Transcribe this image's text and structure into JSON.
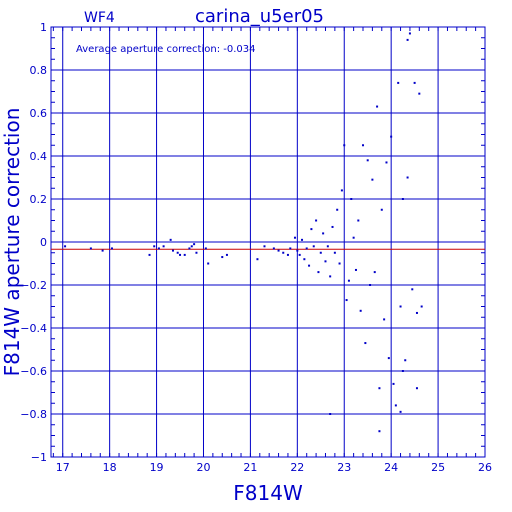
{
  "colors": {
    "axis": "#0000c8",
    "points": "#0000c8",
    "reference_line": "#c80000",
    "background": "#ffffff"
  },
  "chart_data": {
    "type": "scatter",
    "chip_label": "WF4",
    "title": "carina_u5er05",
    "annotation": "Average aperture correction: -0.034",
    "xlabel": "F814W",
    "ylabel": "F814W aperture correction",
    "xlim": [
      16.75,
      26
    ],
    "ylim": [
      -1,
      1
    ],
    "xticks": [
      17,
      18,
      19,
      20,
      21,
      22,
      23,
      24,
      25,
      26
    ],
    "yticks": [
      -1,
      -0.8,
      -0.6,
      -0.4,
      -0.2,
      0,
      0.2,
      0.4,
      0.6,
      0.8,
      1
    ],
    "ytick_labels": [
      "−1",
      "−0.8",
      "−0.6",
      "−0.4",
      "−0.2",
      "0",
      "0.2",
      "0.4",
      "0.6",
      "0.8",
      "1"
    ],
    "grid": true,
    "reference_line_y": -0.034,
    "zero_line_y": 0,
    "points": [
      [
        17.05,
        -0.02
      ],
      [
        17.6,
        -0.03
      ],
      [
        17.85,
        -0.04
      ],
      [
        18.05,
        -0.03
      ],
      [
        18.85,
        -0.06
      ],
      [
        18.95,
        -0.02
      ],
      [
        19.05,
        -0.03
      ],
      [
        19.15,
        -0.02
      ],
      [
        19.3,
        0.01
      ],
      [
        19.35,
        -0.04
      ],
      [
        19.45,
        -0.05
      ],
      [
        19.5,
        -0.06
      ],
      [
        19.6,
        -0.06
      ],
      [
        19.7,
        -0.03
      ],
      [
        19.75,
        -0.02
      ],
      [
        19.8,
        -0.01
      ],
      [
        19.85,
        -0.05
      ],
      [
        20.05,
        -0.03
      ],
      [
        20.1,
        -0.1
      ],
      [
        20.4,
        -0.07
      ],
      [
        20.5,
        -0.06
      ],
      [
        21.15,
        -0.08
      ],
      [
        21.3,
        -0.02
      ],
      [
        21.5,
        -0.03
      ],
      [
        21.6,
        -0.04
      ],
      [
        21.7,
        -0.05
      ],
      [
        21.8,
        -0.06
      ],
      [
        21.85,
        -0.03
      ],
      [
        21.95,
        0.02
      ],
      [
        22.0,
        -0.04
      ],
      [
        22.05,
        -0.06
      ],
      [
        22.1,
        0.01
      ],
      [
        22.15,
        -0.08
      ],
      [
        22.2,
        -0.03
      ],
      [
        22.25,
        -0.11
      ],
      [
        22.3,
        0.06
      ],
      [
        22.35,
        -0.02
      ],
      [
        22.4,
        0.1
      ],
      [
        22.45,
        -0.14
      ],
      [
        22.5,
        -0.05
      ],
      [
        22.55,
        0.04
      ],
      [
        22.6,
        -0.09
      ],
      [
        22.65,
        -0.02
      ],
      [
        22.7,
        -0.16
      ],
      [
        22.75,
        0.07
      ],
      [
        22.8,
        -0.05
      ],
      [
        22.85,
        0.15
      ],
      [
        22.9,
        -0.1
      ],
      [
        22.95,
        0.24
      ],
      [
        23.0,
        0.45
      ],
      [
        23.05,
        -0.27
      ],
      [
        23.1,
        -0.18
      ],
      [
        23.15,
        0.2
      ],
      [
        23.2,
        0.02
      ],
      [
        23.25,
        -0.13
      ],
      [
        23.3,
        0.1
      ],
      [
        23.35,
        -0.32
      ],
      [
        23.4,
        0.45
      ],
      [
        23.45,
        -0.47
      ],
      [
        23.5,
        0.38
      ],
      [
        23.55,
        -0.2
      ],
      [
        23.6,
        0.29
      ],
      [
        23.65,
        -0.14
      ],
      [
        23.7,
        0.63
      ],
      [
        23.75,
        -0.68
      ],
      [
        23.8,
        0.15
      ],
      [
        23.85,
        -0.36
      ],
      [
        23.9,
        0.37
      ],
      [
        23.95,
        -0.54
      ],
      [
        24.0,
        0.49
      ],
      [
        24.05,
        -0.66
      ],
      [
        24.1,
        -0.76
      ],
      [
        24.15,
        0.74
      ],
      [
        24.2,
        -0.3
      ],
      [
        24.25,
        0.2
      ],
      [
        24.3,
        -0.55
      ],
      [
        24.35,
        0.94
      ],
      [
        24.4,
        0.97
      ],
      [
        24.45,
        -0.22
      ],
      [
        24.5,
        0.74
      ],
      [
        24.55,
        -0.33
      ],
      [
        24.6,
        0.69
      ],
      [
        24.65,
        -0.3
      ],
      [
        22.7,
        -0.8
      ],
      [
        23.75,
        -0.88
      ],
      [
        24.2,
        -0.79
      ],
      [
        24.25,
        -0.6
      ],
      [
        24.35,
        0.3
      ],
      [
        24.55,
        -0.68
      ]
    ]
  }
}
